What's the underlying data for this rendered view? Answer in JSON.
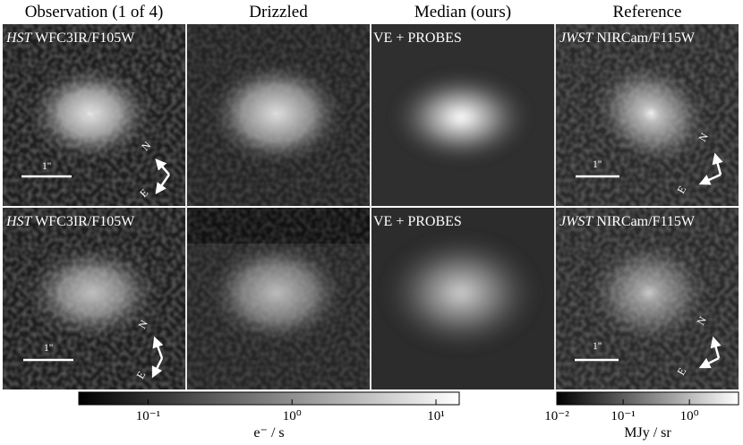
{
  "columns": [
    "Observation (1 of 4)",
    "Drizzled",
    "Median (ours)",
    "Reference"
  ],
  "rows": [
    {
      "observation": {
        "telescope": "HST",
        "instrument": "WFC3IR/F105W",
        "scale": "1''",
        "north": "N",
        "east": "E"
      },
      "median": {
        "label": "VE + PROBES"
      },
      "reference": {
        "telescope": "JWST",
        "instrument": "NIRCam/F115W",
        "scale": "1''",
        "north": "N",
        "east": "E"
      }
    },
    {
      "observation": {
        "telescope": "HST",
        "instrument": "WFC3IR/F105W",
        "scale": "1''",
        "north": "N",
        "east": "E"
      },
      "median": {
        "label": "VE + PROBES"
      },
      "reference": {
        "telescope": "JWST",
        "instrument": "NIRCam/F115W",
        "scale": "1''",
        "north": "N",
        "east": "E"
      }
    }
  ],
  "colorbars": [
    {
      "label": "e⁻ / s",
      "log": true,
      "lim": [
        0.033,
        14.5
      ],
      "ticks": [
        {
          "value": 0.1,
          "label": "10⁻¹"
        },
        {
          "value": 1,
          "label": "10⁰"
        },
        {
          "value": 10,
          "label": "10¹"
        }
      ]
    },
    {
      "label": "MJy / sr",
      "log": true,
      "lim": [
        0.01,
        5.5
      ],
      "ticks": [
        {
          "value": 0.01,
          "label": "10⁻²"
        },
        {
          "value": 0.1,
          "label": "10⁻¹"
        },
        {
          "value": 1,
          "label": "10⁰"
        }
      ]
    }
  ]
}
